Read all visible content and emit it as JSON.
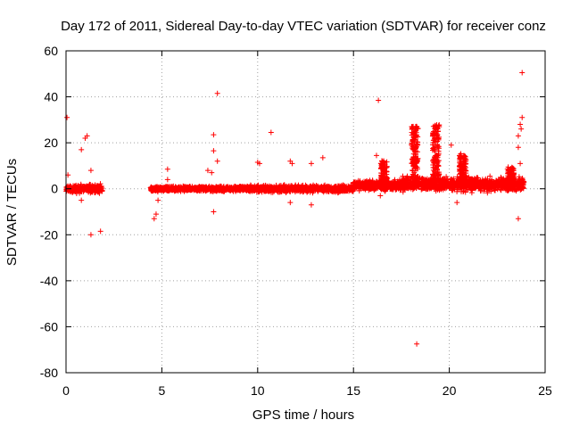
{
  "chart_data": {
    "type": "scatter",
    "title": "Day 172 of 2011, Sidereal Day-to-day VTEC variation (SDTVAR) for receiver conz",
    "xlabel": "GPS time / hours",
    "ylabel": "SDTVAR / TECUs",
    "xlim": [
      0,
      25
    ],
    "ylim": [
      -80,
      60
    ],
    "xticks": [
      0,
      5,
      10,
      15,
      20,
      25
    ],
    "yticks": [
      -80,
      -60,
      -40,
      -20,
      0,
      20,
      40,
      60
    ],
    "grid": true,
    "marker": "plus",
    "color": "#ff0000",
    "band_segments": [
      {
        "x_start": 0.0,
        "x_end": 1.9,
        "center": 0,
        "spread": 2.5
      },
      {
        "x_start": 4.4,
        "x_end": 9.5,
        "center": 0,
        "spread": 1.5
      },
      {
        "x_start": 9.5,
        "x_end": 15.0,
        "center": 0,
        "spread": 2.0
      },
      {
        "x_start": 15.0,
        "x_end": 17.5,
        "center": 1.5,
        "spread": 3.0
      },
      {
        "x_start": 17.5,
        "x_end": 23.9,
        "center": 2,
        "spread": 4.0
      }
    ],
    "ionospheric_features": [
      {
        "x": 16.6,
        "peak": 12
      },
      {
        "x": 18.2,
        "peak": 28
      },
      {
        "x": 19.3,
        "peak": 28
      },
      {
        "x": 20.7,
        "peak": 15
      },
      {
        "x": 23.2,
        "peak": 9
      }
    ],
    "outliers": [
      {
        "x": 0.05,
        "y": 31
      },
      {
        "x": 0.1,
        "y": 6
      },
      {
        "x": 0.8,
        "y": 17
      },
      {
        "x": 1.0,
        "y": 22
      },
      {
        "x": 1.1,
        "y": 23
      },
      {
        "x": 1.3,
        "y": 8
      },
      {
        "x": 1.3,
        "y": -20
      },
      {
        "x": 1.8,
        "y": -18.5
      },
      {
        "x": 0.8,
        "y": -5
      },
      {
        "x": 4.6,
        "y": -13
      },
      {
        "x": 4.7,
        "y": -11
      },
      {
        "x": 4.8,
        "y": -5
      },
      {
        "x": 5.3,
        "y": 8.5
      },
      {
        "x": 5.3,
        "y": 4
      },
      {
        "x": 7.4,
        "y": 8
      },
      {
        "x": 7.6,
        "y": 7
      },
      {
        "x": 7.7,
        "y": 23.5
      },
      {
        "x": 7.7,
        "y": 16.5
      },
      {
        "x": 7.7,
        "y": -10
      },
      {
        "x": 7.9,
        "y": 41.5
      },
      {
        "x": 7.9,
        "y": 12
      },
      {
        "x": 10.0,
        "y": 11.5
      },
      {
        "x": 10.1,
        "y": 11
      },
      {
        "x": 10.7,
        "y": 24.5
      },
      {
        "x": 11.7,
        "y": 12
      },
      {
        "x": 11.8,
        "y": 11
      },
      {
        "x": 11.7,
        "y": -6
      },
      {
        "x": 12.8,
        "y": 11
      },
      {
        "x": 12.8,
        "y": -7
      },
      {
        "x": 13.4,
        "y": 13.5
      },
      {
        "x": 16.3,
        "y": 38.5
      },
      {
        "x": 16.2,
        "y": 14.5
      },
      {
        "x": 16.4,
        "y": -3
      },
      {
        "x": 18.3,
        "y": -67.5
      },
      {
        "x": 20.4,
        "y": -6
      },
      {
        "x": 20.1,
        "y": 19
      },
      {
        "x": 23.6,
        "y": -13
      },
      {
        "x": 23.6,
        "y": 18
      },
      {
        "x": 23.6,
        "y": 23
      },
      {
        "x": 23.7,
        "y": 28
      },
      {
        "x": 23.75,
        "y": 26
      },
      {
        "x": 23.8,
        "y": 31
      },
      {
        "x": 23.8,
        "y": 50.5
      },
      {
        "x": 23.7,
        "y": 11
      }
    ]
  }
}
